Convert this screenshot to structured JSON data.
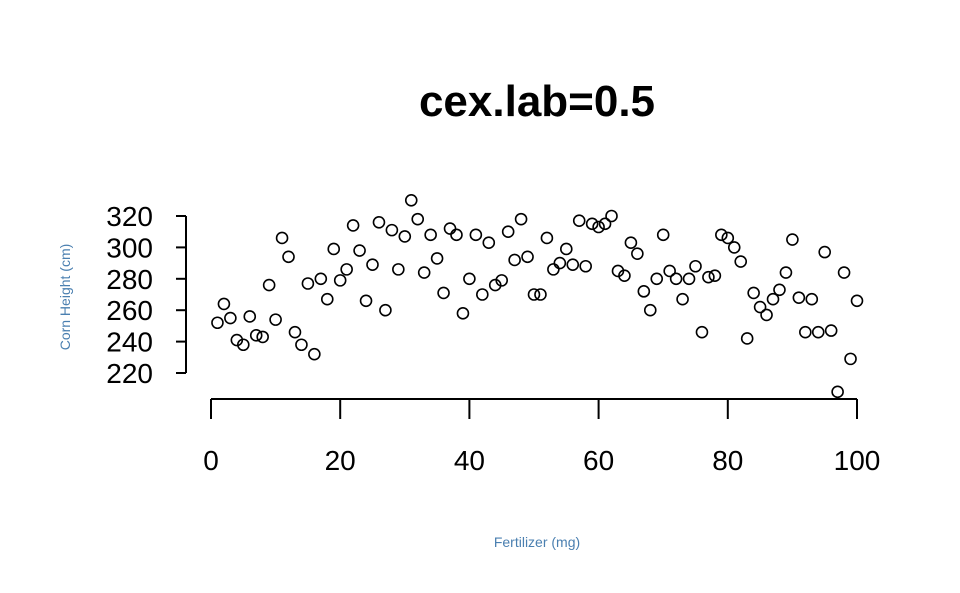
{
  "chart_data": {
    "type": "scatter",
    "title": "cex.lab=0.5",
    "xlabel": "Fertilizer (mg)",
    "ylabel": "Corn Height (cm)",
    "xlim": [
      0,
      100
    ],
    "ylim": [
      205,
      330
    ],
    "xticks": [
      0,
      20,
      40,
      60,
      80,
      100
    ],
    "yticks": [
      220,
      240,
      260,
      280,
      300,
      320
    ],
    "grid": false,
    "x": [
      1,
      2,
      3,
      4,
      5,
      6,
      7,
      8,
      9,
      10,
      11,
      12,
      13,
      14,
      15,
      16,
      17,
      18,
      19,
      20,
      21,
      22,
      23,
      24,
      25,
      26,
      27,
      28,
      29,
      30,
      31,
      32,
      33,
      34,
      35,
      36,
      37,
      38,
      39,
      40,
      41,
      42,
      43,
      44,
      45,
      46,
      47,
      48,
      49,
      50,
      51,
      52,
      53,
      54,
      55,
      56,
      57,
      58,
      59,
      60,
      61,
      62,
      63,
      64,
      65,
      66,
      67,
      68,
      69,
      70,
      71,
      72,
      73,
      74,
      75,
      76,
      77,
      78,
      79,
      80,
      81,
      82,
      83,
      84,
      85,
      86,
      87,
      88,
      89,
      90,
      91,
      92,
      93,
      94,
      95,
      96,
      97,
      98,
      99,
      100
    ],
    "y": [
      252,
      264,
      255,
      241,
      238,
      256,
      244,
      243,
      276,
      254,
      306,
      294,
      246,
      238,
      277,
      232,
      280,
      267,
      299,
      279,
      286,
      314,
      298,
      266,
      289,
      316,
      260,
      311,
      286,
      307,
      330,
      318,
      284,
      308,
      293,
      271,
      312,
      308,
      258,
      280,
      308,
      270,
      303,
      276,
      279,
      310,
      292,
      318,
      294,
      270,
      270,
      306,
      286,
      290,
      299,
      289,
      317,
      288,
      315,
      313,
      315,
      320,
      285,
      282,
      303,
      296,
      272,
      260,
      280,
      308,
      285,
      280,
      267,
      280,
      288,
      246,
      281,
      282,
      308,
      306,
      300,
      291,
      242,
      271,
      262,
      257,
      267,
      273,
      284,
      305,
      268,
      246,
      267,
      246,
      297,
      247,
      208,
      284,
      229,
      266
    ]
  }
}
